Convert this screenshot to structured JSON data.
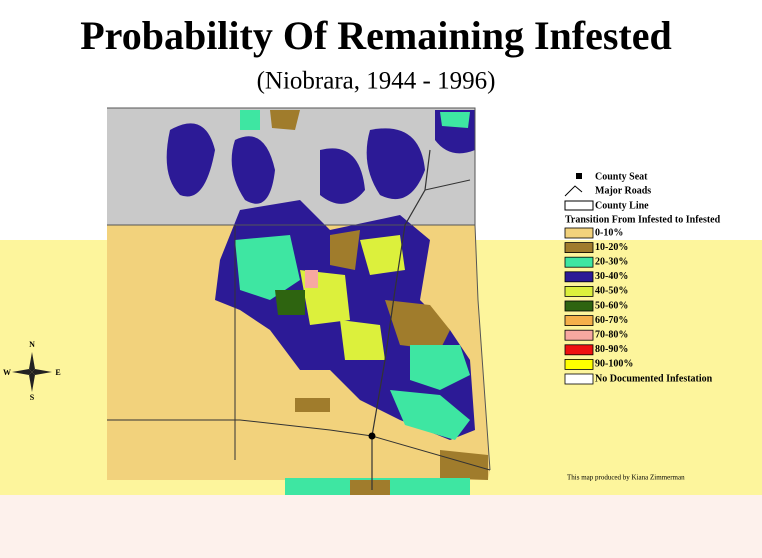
{
  "title": "Probability Of Remaining Infested",
  "subtitle": "(Niobrara, 1944 - 1996)",
  "compass": {
    "north": "N",
    "south": "S",
    "east": "E",
    "west": "W"
  },
  "legend": {
    "symbols": [
      "County Seat",
      "Major Roads",
      "County Line"
    ],
    "heading": "Transition From Infested to Infested",
    "items": [
      {
        "label": "0-10%",
        "color": "#f2d27c"
      },
      {
        "label": "10-20%",
        "color": "#a07c2c"
      },
      {
        "label": "20-30%",
        "color": "#3ee6a2"
      },
      {
        "label": "30-40%",
        "color": "#2c1a96"
      },
      {
        "label": "40-50%",
        "color": "#dcf03c"
      },
      {
        "label": "50-60%",
        "color": "#2e6410"
      },
      {
        "label": "60-70%",
        "color": "#f5b04a"
      },
      {
        "label": "70-80%",
        "color": "#f7a8a0"
      },
      {
        "label": "80-90%",
        "color": "#ee1010"
      },
      {
        "label": "90-100%",
        "color": "#ffff00"
      },
      {
        "label": "No Documented Infestation",
        "color": "#ffffff"
      }
    ]
  },
  "credit": "This map produced by Kiana Zimmerman"
}
